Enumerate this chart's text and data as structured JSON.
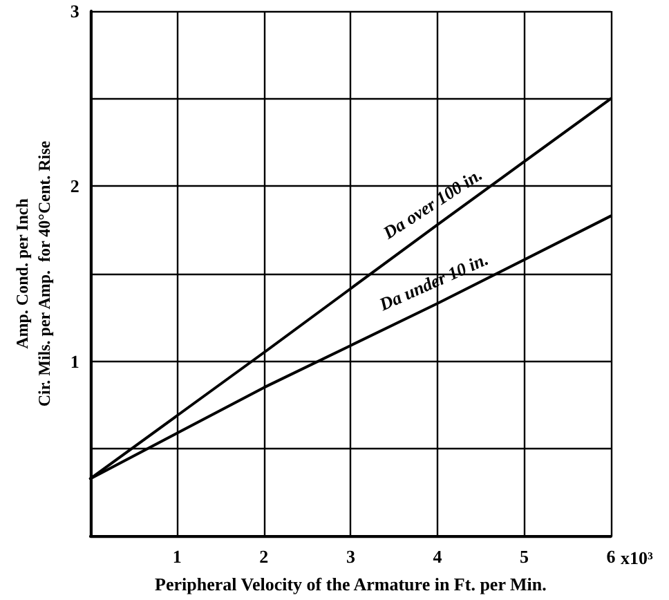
{
  "chart_data": {
    "type": "line",
    "xlabel": "Peripheral Velocity of the Armature in Ft. per Min.",
    "ylabel": "Amp. Cond. per Inch\nCir. Mils. per Amp.  for 40°Cent. Rise",
    "x": [
      0,
      2,
      4,
      6
    ],
    "series": [
      {
        "name": "Da over 100 in.",
        "color": "#000000",
        "values": [
          0.33,
          1.05,
          1.78,
          2.5
        ]
      },
      {
        "name": "Da under 10 in.",
        "color": "#000000",
        "values": [
          0.33,
          0.85,
          1.33,
          1.83
        ]
      }
    ],
    "xlim": [
      0,
      6
    ],
    "xticks": [
      {
        "value": 0,
        "label": null
      },
      1,
      2,
      3,
      4,
      5,
      6
    ],
    "annotations": [
      "x10³"
    ],
    "ylim": [
      0,
      3
    ],
    "yticks": [
      {
        "value": 0,
        "label": null
      },
      {
        "value": 0.5,
        "label": null
      },
      1,
      {
        "value": 1.5,
        "label": null
      },
      2,
      {
        "value": 2.5,
        "label": null
      },
      3
    ],
    "grid": true,
    "marker": "none",
    "line_style": "solid",
    "legend": false
  }
}
